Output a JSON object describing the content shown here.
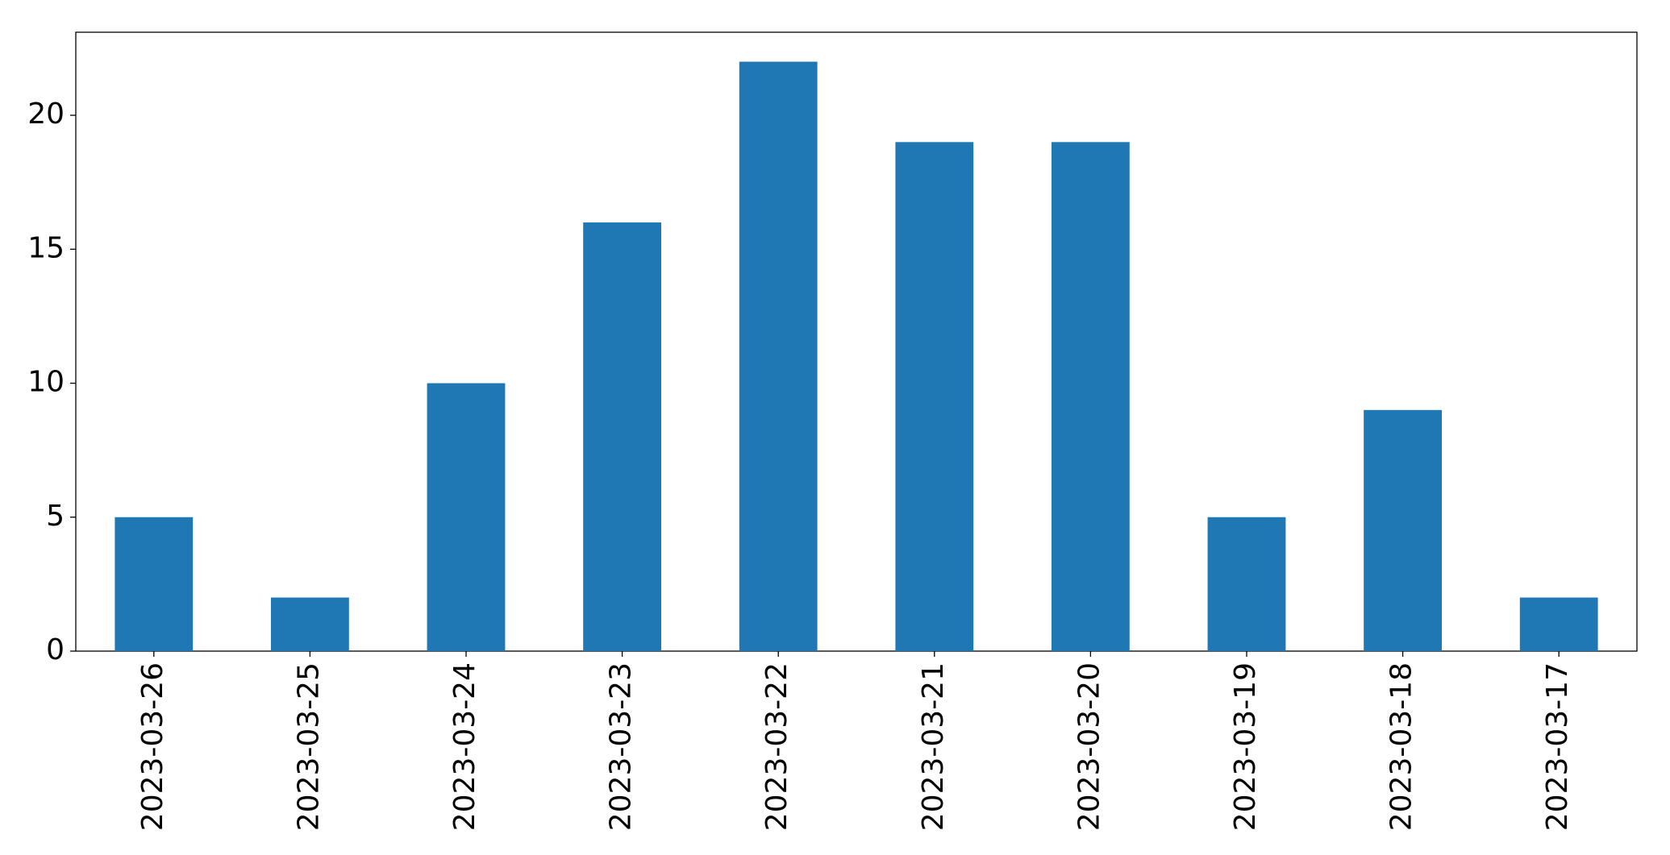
{
  "chart_data": {
    "type": "bar",
    "categories": [
      "2023-03-26",
      "2023-03-25",
      "2023-03-24",
      "2023-03-23",
      "2023-03-22",
      "2023-03-21",
      "2023-03-20",
      "2023-03-19",
      "2023-03-18",
      "2023-03-17"
    ],
    "values": [
      5,
      2,
      10,
      16,
      22,
      19,
      19,
      5,
      9,
      2
    ],
    "color": "#1f77b4",
    "ylim": [
      0,
      23.1
    ],
    "yticks": [
      0,
      5,
      10,
      15,
      20
    ],
    "grid": false
  }
}
